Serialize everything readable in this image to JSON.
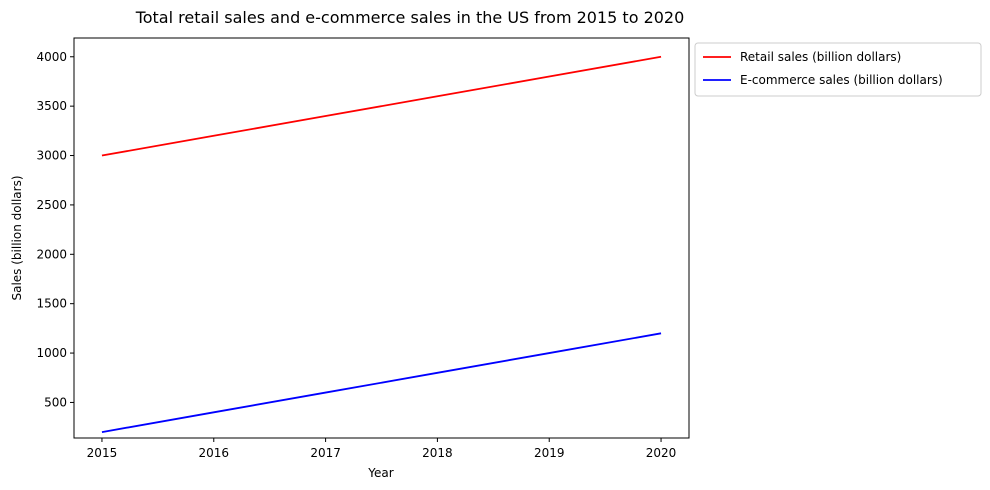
{
  "chart_data": {
    "type": "line",
    "title": "Total retail sales and e-commerce sales in the US from 2015 to 2020",
    "xlabel": "Year",
    "ylabel": "Sales (billion dollars)",
    "x": [
      2015,
      2016,
      2017,
      2018,
      2019,
      2020
    ],
    "x_ticks": [
      "2015",
      "2016",
      "2017",
      "2018",
      "2019",
      "2020"
    ],
    "y_ticks": [
      500,
      1000,
      1500,
      2000,
      2500,
      3000,
      3500,
      4000
    ],
    "xlim": [
      2014.75,
      2020.25
    ],
    "ylim": [
      140,
      4190
    ],
    "grid": false,
    "legend_position": "outside-upper-right",
    "series": [
      {
        "name": "Retail sales (billion dollars)",
        "color": "#ff0000",
        "values": [
          3000,
          3200,
          3400,
          3600,
          3800,
          4000
        ]
      },
      {
        "name": "E-commerce sales (billion dollars)",
        "color": "#0000ff",
        "values": [
          200,
          400,
          600,
          800,
          1000,
          1200
        ]
      }
    ]
  }
}
